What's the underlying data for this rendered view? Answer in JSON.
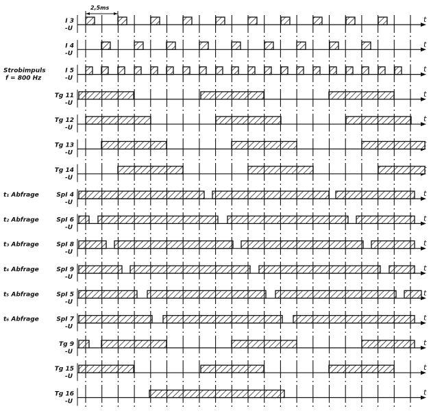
{
  "scale_label": "2,5ms",
  "axis_end_label": "t",
  "rows": [
    {
      "id": "i3",
      "sig": "I 3",
      "neg": "-U",
      "left": "",
      "pulses": [
        [
          125,
          138
        ],
        [
          172,
          185
        ],
        [
          220,
          233
        ],
        [
          267,
          280
        ],
        [
          315,
          328
        ],
        [
          362,
          375
        ],
        [
          410,
          423
        ],
        [
          457,
          470
        ],
        [
          505,
          518
        ],
        [
          552,
          565
        ]
      ]
    },
    {
      "id": "i4",
      "sig": "I 4",
      "neg": "-U",
      "left": "",
      "pulses": [
        [
          148,
          161
        ],
        [
          196,
          209
        ],
        [
          243,
          256
        ],
        [
          291,
          304
        ],
        [
          338,
          351
        ],
        [
          386,
          399
        ],
        [
          433,
          446
        ],
        [
          481,
          494
        ],
        [
          528,
          541
        ]
      ]
    },
    {
      "id": "i5",
      "sig": "I 5",
      "neg": "-U",
      "left": "Strobimpuls",
      "left2": "f = 800 Hz",
      "pulses": [
        [
          125,
          135
        ],
        [
          148,
          158
        ],
        [
          172,
          182
        ],
        [
          196,
          206
        ],
        [
          220,
          230
        ],
        [
          243,
          253
        ],
        [
          267,
          277
        ],
        [
          291,
          301
        ],
        [
          315,
          325
        ],
        [
          338,
          348
        ],
        [
          362,
          372
        ],
        [
          386,
          396
        ],
        [
          410,
          420
        ],
        [
          433,
          443
        ],
        [
          457,
          467
        ],
        [
          481,
          491
        ],
        [
          505,
          515
        ],
        [
          528,
          538
        ],
        [
          552,
          562
        ],
        [
          576,
          586
        ]
      ]
    },
    {
      "id": "tg11",
      "sig": "Tg 11",
      "neg": "-U",
      "left": "",
      "pulses": [
        [
          115,
          195
        ],
        [
          293,
          385
        ],
        [
          480,
          575
        ]
      ]
    },
    {
      "id": "tg12",
      "sig": "Tg 12",
      "neg": "-U",
      "left": "",
      "pulses": [
        [
          125,
          220
        ],
        [
          315,
          410
        ],
        [
          505,
          600
        ]
      ]
    },
    {
      "id": "tg13",
      "sig": "Tg 13",
      "neg": "-U",
      "left": "",
      "pulses": [
        [
          148,
          243
        ],
        [
          338,
          433
        ],
        [
          528,
          620
        ]
      ]
    },
    {
      "id": "tg14",
      "sig": "Tg 14",
      "neg": "-U",
      "left": "",
      "pulses": [
        [
          172,
          267
        ],
        [
          362,
          457
        ],
        [
          552,
          620
        ]
      ]
    },
    {
      "id": "spi4",
      "sig": "SpI 4",
      "neg": "-U",
      "left": "t₁ Abfrage",
      "pulses": [
        [
          115,
          298
        ],
        [
          310,
          480
        ],
        [
          490,
          605
        ]
      ]
    },
    {
      "id": "spi6",
      "sig": "SpI 6",
      "neg": "-U",
      "left": "t₂ Abfrage",
      "pulses": [
        [
          115,
          130
        ],
        [
          143,
          318
        ],
        [
          332,
          508
        ],
        [
          520,
          605
        ]
      ]
    },
    {
      "id": "spi8",
      "sig": "SpI 8",
      "neg": "-U",
      "left": "t₃ Abfrage",
      "pulses": [
        [
          115,
          155
        ],
        [
          167,
          340
        ],
        [
          352,
          530
        ],
        [
          542,
          605
        ]
      ]
    },
    {
      "id": "spi9",
      "sig": "SpI 9",
      "neg": "-U",
      "left": "t₄ Abfrage",
      "pulses": [
        [
          115,
          178
        ],
        [
          190,
          365
        ],
        [
          378,
          555
        ],
        [
          568,
          605
        ]
      ]
    },
    {
      "id": "spi5",
      "sig": "SpI 5",
      "neg": "-U",
      "left": "t₅ Abfrage",
      "pulses": [
        [
          115,
          200
        ],
        [
          215,
          388
        ],
        [
          402,
          578
        ],
        [
          590,
          615
        ]
      ]
    },
    {
      "id": "spi7",
      "sig": "SpI 7",
      "neg": "-U",
      "left": "t₆ Abfrage",
      "pulses": [
        [
          115,
          222
        ],
        [
          238,
          412
        ],
        [
          428,
          605
        ]
      ]
    },
    {
      "id": "tg9",
      "sig": "Tg 9",
      "neg": "-U",
      "left": "",
      "pulses": [
        [
          115,
          130
        ],
        [
          148,
          243
        ],
        [
          338,
          433
        ],
        [
          528,
          605
        ]
      ]
    },
    {
      "id": "tg15",
      "sig": "Tg 15",
      "neg": "-U",
      "left": "",
      "pulses": [
        [
          115,
          195
        ],
        [
          293,
          385
        ],
        [
          480,
          575
        ]
      ]
    },
    {
      "id": "tg16",
      "sig": "Tg 16",
      "neg": "-U",
      "left": "",
      "pulses": [
        [
          218,
          415
        ]
      ]
    }
  ]
}
